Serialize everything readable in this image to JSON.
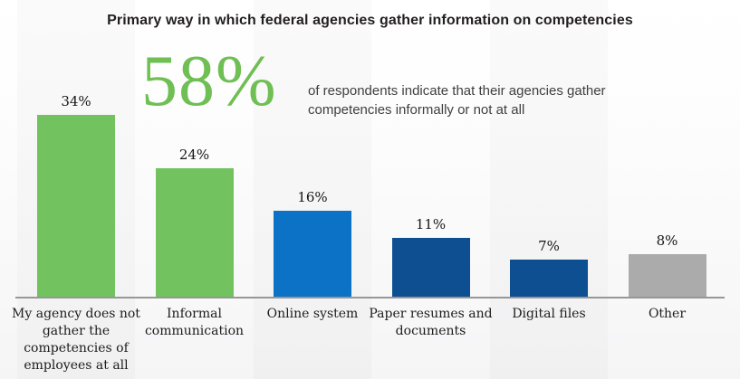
{
  "chart": {
    "title": "Primary way in which federal agencies gather information on competencies",
    "callout": {
      "value": "58%",
      "text": "of respondents indicate that their agencies gather competencies informally or not at all"
    }
  },
  "chart_data": {
    "type": "bar",
    "title": "Primary way in which federal agencies gather information on competencies",
    "categories": [
      "My agency does not gather the competencies of employees at all",
      "Informal communication",
      "Online system",
      "Paper resumes and documents",
      "Digital files",
      "Other"
    ],
    "values": [
      34,
      24,
      16,
      11,
      7,
      8
    ],
    "value_labels": [
      "34%",
      "24%",
      "16%",
      "11%",
      "7%",
      "8%"
    ],
    "bar_colors": [
      "#72c25f",
      "#72c25f",
      "#0b72c6",
      "#0d4f91",
      "#0d4f91",
      "#ababab"
    ],
    "xlabel": "",
    "ylabel": "",
    "ylim": [
      0,
      40
    ],
    "grid": false,
    "legend": false,
    "annotation": {
      "value": "58%",
      "text": "of respondents indicate that their agencies gather competencies informally or not at all"
    }
  },
  "colors": {
    "green": "#72c25f",
    "blue": "#0b72c6",
    "dark_blue": "#0d4f91",
    "gray": "#ababab",
    "axis_line": "#979797",
    "callout_green": "#6fbf54",
    "title_text": "#231f20",
    "label_text": "#1c1c1c",
    "description_text": "#3f3f3f"
  }
}
